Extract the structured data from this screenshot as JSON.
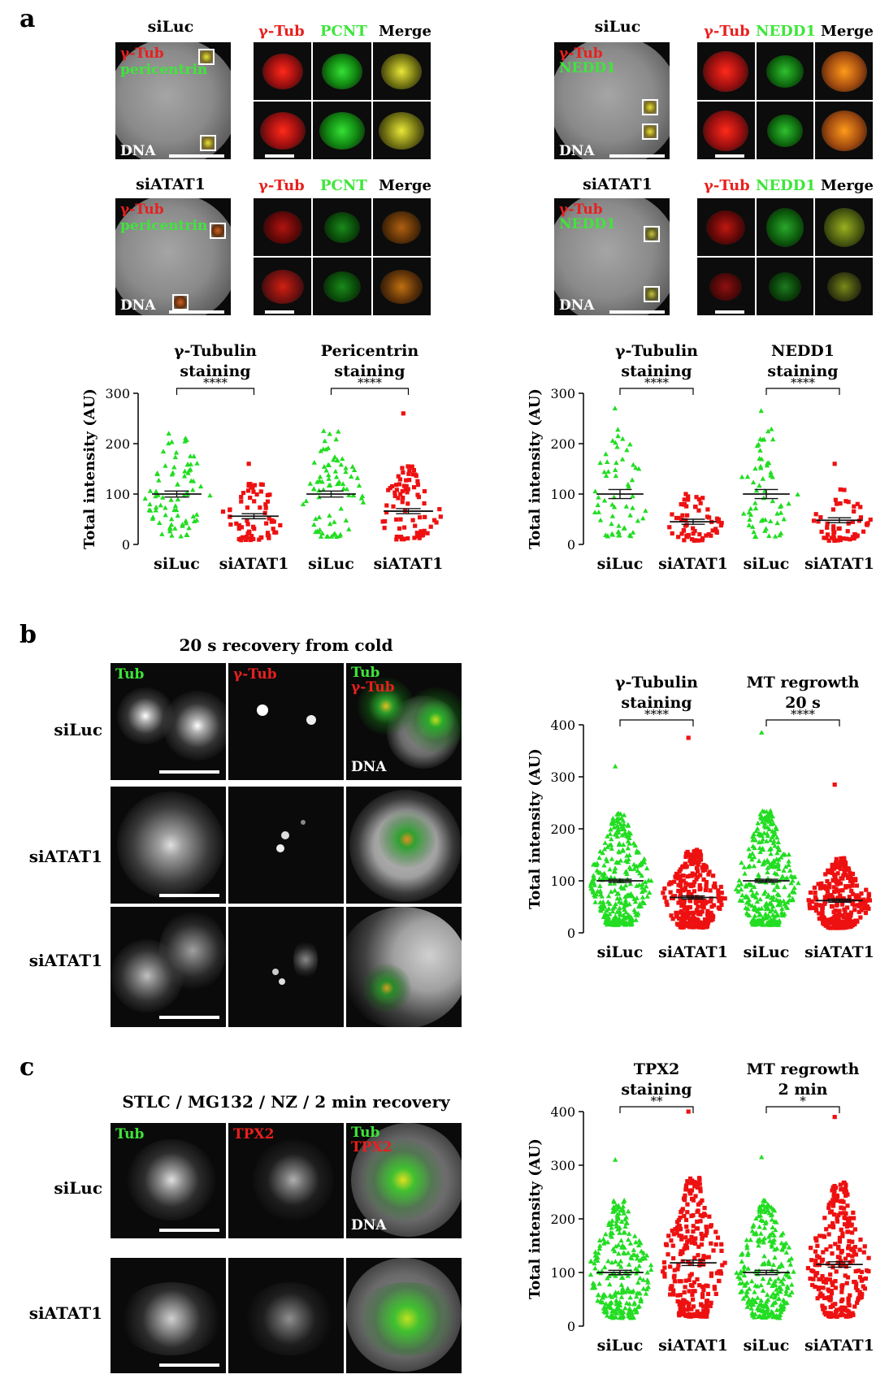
{
  "panels": {
    "a": "a",
    "b": "b",
    "c": "c"
  },
  "overlay": {
    "gtub": "γ-Tub",
    "pericentrin": "pericentrin",
    "nedd1": "NEDD1",
    "dna": "DNA",
    "tub": "Tub",
    "tpx2": "TPX2"
  },
  "zoom_headers": {
    "gtub": "γ-Tub",
    "pcnt": "PCNT",
    "nedd1": "NEDD1",
    "merge": "Merge"
  },
  "conditions": {
    "siluc": "siLuc",
    "siatat1": "siATAT1"
  },
  "panel_b": {
    "title": "20 s recovery from cold",
    "col_tub": "Tub",
    "col_gtub": "γ-Tub",
    "merge_tub": "Tub",
    "merge_gtub": "γ-Tub",
    "rows": [
      "siLuc",
      "siATAT1",
      "siATAT1"
    ]
  },
  "panel_c": {
    "title": "STLC / MG132 / NZ / 2 min recovery",
    "rows": [
      "siLuc",
      "siATAT1"
    ]
  },
  "colors": {
    "siLuc": "#22dd22",
    "siATAT1": "#ee1111"
  },
  "chart_data": [
    {
      "id": "a-left",
      "type": "scatter",
      "ylabel": "Total intensity (AU)",
      "ylim": [
        0,
        300
      ],
      "yticks": [
        0,
        100,
        200,
        300
      ],
      "categories": [
        "siLuc",
        "siATAT1",
        "siLuc",
        "siATAT1"
      ],
      "group_titles": [
        [
          "γ-Tubulin",
          "staining"
        ],
        [
          "Pericentrin",
          "staining"
        ]
      ],
      "significance": [
        "****",
        "****"
      ],
      "series": [
        {
          "name": "siLuc",
          "mean": 100,
          "sem": 6,
          "max": 220,
          "n": 80
        },
        {
          "name": "siATAT1",
          "mean": 56,
          "sem": 5,
          "max": 160,
          "n": 75
        },
        {
          "name": "siLuc",
          "mean": 100,
          "sem": 6,
          "max": 225,
          "n": 80
        },
        {
          "name": "siATAT1",
          "mean": 66,
          "sem": 5,
          "max": 260,
          "n": 80
        }
      ]
    },
    {
      "id": "a-right",
      "type": "scatter",
      "ylabel": "Total intensity (AU)",
      "ylim": [
        0,
        300
      ],
      "yticks": [
        0,
        100,
        200,
        300
      ],
      "categories": [
        "siLuc",
        "siATAT1",
        "siLuc",
        "siATAT1"
      ],
      "group_titles": [
        [
          "γ-Tubulin",
          "staining"
        ],
        [
          "NEDD1",
          "staining"
        ]
      ],
      "significance": [
        "****",
        "****"
      ],
      "series": [
        {
          "name": "siLuc",
          "mean": 100,
          "sem": 9,
          "max": 270,
          "n": 60
        },
        {
          "name": "siATAT1",
          "mean": 45,
          "sem": 5,
          "max": 100,
          "n": 60
        },
        {
          "name": "siLuc",
          "mean": 100,
          "sem": 9,
          "max": 265,
          "n": 60
        },
        {
          "name": "siATAT1",
          "mean": 48,
          "sem": 5,
          "max": 160,
          "n": 60
        }
      ]
    },
    {
      "id": "b",
      "type": "scatter",
      "ylabel": "Total intensity (AU)",
      "ylim": [
        0,
        400
      ],
      "yticks": [
        0,
        100,
        200,
        300,
        400
      ],
      "categories": [
        "siLuc",
        "siATAT1",
        "siLuc",
        "siATAT1"
      ],
      "group_titles": [
        [
          "γ-Tubulin",
          "staining"
        ],
        [
          "MT regrowth",
          "20 s"
        ]
      ],
      "significance": [
        "****",
        "****"
      ],
      "series": [
        {
          "name": "siLuc",
          "mean": 100,
          "sem": 3,
          "max": 320,
          "n": 320
        },
        {
          "name": "siATAT1",
          "mean": 68,
          "sem": 3,
          "max": 375,
          "n": 300
        },
        {
          "name": "siLuc",
          "mean": 100,
          "sem": 3,
          "max": 385,
          "n": 320
        },
        {
          "name": "siATAT1",
          "mean": 62,
          "sem": 3,
          "max": 285,
          "n": 300
        }
      ]
    },
    {
      "id": "c",
      "type": "scatter",
      "ylabel": "Total intensity (AU)",
      "ylim": [
        0,
        400
      ],
      "yticks": [
        0,
        100,
        200,
        300,
        400
      ],
      "categories": [
        "siLuc",
        "siATAT1",
        "siLuc",
        "siATAT1"
      ],
      "group_titles": [
        [
          "TPX2",
          "staining"
        ],
        [
          "MT regrowth",
          "2 min"
        ]
      ],
      "significance": [
        "**",
        "*"
      ],
      "series": [
        {
          "name": "siLuc",
          "mean": 100,
          "sem": 4,
          "max": 310,
          "n": 260
        },
        {
          "name": "siATAT1",
          "mean": 118,
          "sem": 5,
          "max": 400,
          "n": 260
        },
        {
          "name": "siLuc",
          "mean": 100,
          "sem": 4,
          "max": 315,
          "n": 260
        },
        {
          "name": "siATAT1",
          "mean": 115,
          "sem": 5,
          "max": 390,
          "n": 260
        }
      ]
    }
  ]
}
